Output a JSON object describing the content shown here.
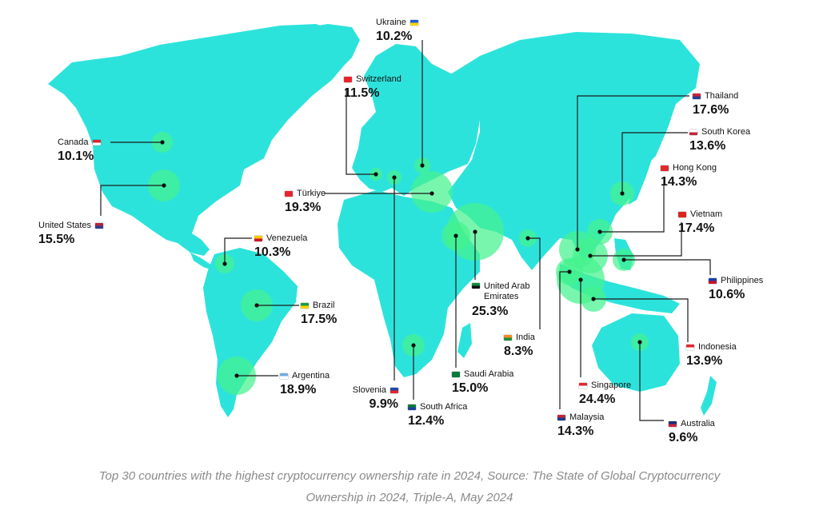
{
  "countries": [
    {
      "id": "ukraine",
      "name": "Ukraine",
      "value": "10.2%",
      "flag": [
        "#1f5bd6",
        "#ffd400"
      ]
    },
    {
      "id": "switzerland",
      "name": "Switzerland",
      "value": "11.5%",
      "flag": [
        "#e8222c",
        "#e8222c"
      ]
    },
    {
      "id": "canada",
      "name": "Canada",
      "value": "10.1%",
      "flag": [
        "#e0242c",
        "#ffffff"
      ]
    },
    {
      "id": "turkiye",
      "name": "Türkiye",
      "value": "19.3%",
      "flag": [
        "#e3262e",
        "#e3262e"
      ]
    },
    {
      "id": "united-states",
      "name": "United States",
      "value": "15.5%",
      "flag": [
        "#b5243a",
        "#2e3f8f"
      ]
    },
    {
      "id": "venezuela",
      "name": "Venezuela",
      "value": "10.3%",
      "flag": [
        "#f5c900",
        "#cf142b"
      ]
    },
    {
      "id": "brazil",
      "name": "Brazil",
      "value": "17.5%",
      "flag": [
        "#1c9b3e",
        "#f7d100"
      ]
    },
    {
      "id": "argentina",
      "name": "Argentina",
      "value": "18.9%",
      "flag": [
        "#74acdf",
        "#ffffff"
      ]
    },
    {
      "id": "slovenia",
      "name": "Slovenia",
      "value": "9.9%",
      "flag": [
        "#1f46a8",
        "#e3262e"
      ]
    },
    {
      "id": "south-africa",
      "name": "South Africa",
      "value": "12.4%",
      "flag": [
        "#0c7a3e",
        "#1d3f9e"
      ]
    },
    {
      "id": "saudi-arabia",
      "name": "Saudi Arabia",
      "value": "15.0%",
      "flag": [
        "#0d7a3b",
        "#0d7a3b"
      ]
    },
    {
      "id": "uae",
      "name": "United Arab Emirates",
      "value": "25.3%",
      "flag": [
        "#138b3f",
        "#111111"
      ]
    },
    {
      "id": "india",
      "name": "India",
      "value": "8.3%",
      "flag": [
        "#f48b24",
        "#1b8f3a"
      ]
    },
    {
      "id": "thailand",
      "name": "Thailand",
      "value": "17.6%",
      "flag": [
        "#c8243a",
        "#2a3b8f"
      ]
    },
    {
      "id": "south-korea",
      "name": "South Korea",
      "value": "13.6%",
      "flag": [
        "#ffffff",
        "#c8243a"
      ]
    },
    {
      "id": "hong-kong",
      "name": "Hong Kong",
      "value": "14.3%",
      "flag": [
        "#de2a2a",
        "#de2a2a"
      ]
    },
    {
      "id": "vietnam",
      "name": "Vietnam",
      "value": "17.4%",
      "flag": [
        "#da251d",
        "#da251d"
      ]
    },
    {
      "id": "philippines",
      "name": "Philippines",
      "value": "10.6%",
      "flag": [
        "#1c3fa8",
        "#ce1126"
      ]
    },
    {
      "id": "indonesia",
      "name": "Indonesia",
      "value": "13.9%",
      "flag": [
        "#e3262e",
        "#ffffff"
      ]
    },
    {
      "id": "singapore",
      "name": "Singapore",
      "value": "24.4%",
      "flag": [
        "#e3262e",
        "#ffffff"
      ]
    },
    {
      "id": "malaysia",
      "name": "Malaysia",
      "value": "14.3%",
      "flag": [
        "#c8243a",
        "#1a3a8f"
      ]
    },
    {
      "id": "australia",
      "name": "Australia",
      "value": "9.6%",
      "flag": [
        "#1b2e7a",
        "#c8243a"
      ]
    }
  ],
  "caption": {
    "line1": "Top 30 countries with the highest cryptocurrency ownership rate in 2024, Source: The State of Global Cryptocurrency",
    "line2": "Ownership in 2024, Triple-A, May 2024"
  },
  "colors": {
    "land": "#2ce3dc",
    "bubble": "#45f28f",
    "text": "#111111",
    "caption": "#8a8a8a"
  }
}
